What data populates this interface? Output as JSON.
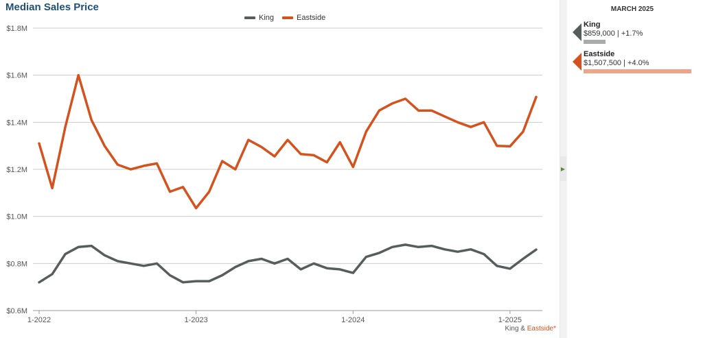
{
  "chart_data": {
    "type": "line",
    "title": "Median Sales Price",
    "xlabel": "",
    "ylabel": "",
    "ylim": [
      600000,
      1800000
    ],
    "y_ticks": [
      600000,
      800000,
      1000000,
      1200000,
      1400000,
      1600000,
      1800000
    ],
    "y_tick_labels": [
      "$0.6M",
      "$0.8M",
      "$1.0M",
      "$1.2M",
      "$1.4M",
      "$1.6M",
      "$1.8M"
    ],
    "x_tick_labels": [
      "1-2022",
      "1-2023",
      "1-2024",
      "1-2025"
    ],
    "x": [
      "2022-01",
      "2022-02",
      "2022-03",
      "2022-04",
      "2022-05",
      "2022-06",
      "2022-07",
      "2022-08",
      "2022-09",
      "2022-10",
      "2022-11",
      "2022-12",
      "2023-01",
      "2023-02",
      "2023-03",
      "2023-04",
      "2023-05",
      "2023-06",
      "2023-07",
      "2023-08",
      "2023-09",
      "2023-10",
      "2023-11",
      "2023-12",
      "2024-01",
      "2024-02",
      "2024-03",
      "2024-04",
      "2024-05",
      "2024-06",
      "2024-07",
      "2024-08",
      "2024-09",
      "2024-10",
      "2024-11",
      "2024-12",
      "2025-01",
      "2025-02",
      "2025-03"
    ],
    "grid": true,
    "legend": "top-center",
    "series": [
      {
        "name": "King",
        "color": "#555d5d",
        "values": [
          720000,
          755000,
          840000,
          870000,
          875000,
          835000,
          810000,
          800000,
          790000,
          800000,
          750000,
          720000,
          725000,
          725000,
          750000,
          785000,
          810000,
          820000,
          800000,
          820000,
          775000,
          800000,
          780000,
          775000,
          760000,
          828000,
          845000,
          870000,
          880000,
          870000,
          875000,
          860000,
          850000,
          860000,
          840000,
          790000,
          778000,
          820000,
          859000
        ]
      },
      {
        "name": "Eastside",
        "color": "#d4521e",
        "values": [
          1310000,
          1120000,
          1380000,
          1600000,
          1410000,
          1300000,
          1220000,
          1200000,
          1215000,
          1225000,
          1105000,
          1125000,
          1035000,
          1105000,
          1235000,
          1200000,
          1325000,
          1295000,
          1255000,
          1325000,
          1265000,
          1260000,
          1230000,
          1315000,
          1210000,
          1360000,
          1450000,
          1480000,
          1500000,
          1450000,
          1450000,
          1425000,
          1400000,
          1380000,
          1400000,
          1300000,
          1298000,
          1360000,
          1507500
        ]
      }
    ]
  },
  "legend": {
    "items": [
      {
        "label": "King",
        "color": "#555d5d"
      },
      {
        "label": "Eastside",
        "color": "#d4521e"
      }
    ]
  },
  "footnote": {
    "part1": "King",
    "separator": "&",
    "part2": "Eastside*"
  },
  "panel": {
    "date": "MARCH 2025",
    "entries": [
      {
        "name": "King",
        "value": "$859,000 | +1.7%",
        "marker_color": "#555d5d",
        "bar_color": "#a9abab",
        "bar_fraction": 0.2
      },
      {
        "name": "Eastside",
        "value": "$1,507,500 | +4.0%",
        "marker_color": "#d4521e",
        "bar_color": "#eea58a",
        "bar_fraction": 0.98
      }
    ]
  }
}
